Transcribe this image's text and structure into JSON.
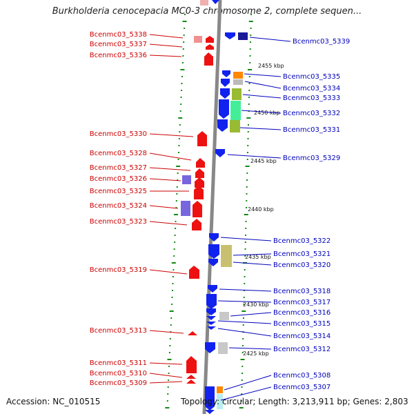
{
  "title": "Burkholderia cenocepacia MC0-3 chromosome 2, complete sequen...",
  "accession": "Accession: NC_010515",
  "topology": "Topology: circular; Length: 3,213,911 bp; Genes: 2,803",
  "scale_labels": [
    "2455 kbp",
    "2450 kbp",
    "2445 kbp",
    "2440 kbp",
    "2435 kbp",
    "2430 kbp",
    "2425 kbp"
  ],
  "left_genes": [
    "Bcenmc03_5338",
    "Bcenmc03_5337",
    "Bcenmc03_5336",
    "Bcenmc03_5330",
    "Bcenmc03_5328",
    "Bcenmc03_5327",
    "Bcenmc03_5326",
    "Bcenmc03_5325",
    "Bcenmc03_5324",
    "Bcenmc03_5323",
    "Bcenmc03_5319",
    "Bcenmc03_5313",
    "Bcenmc03_5311",
    "Bcenmc03_5310",
    "Bcenmc03_5309"
  ],
  "right_genes": [
    "Bcenmc03_5339",
    "Bcenmc03_5335",
    "Bcenmc03_5334",
    "Bcenmc03_5333",
    "Bcenmc03_5332",
    "Bcenmc03_5331",
    "Bcenmc03_5329",
    "Bcenmc03_5322",
    "Bcenmc03_5321",
    "Bcenmc03_5320",
    "Bcenmc03_5318",
    "Bcenmc03_5317",
    "Bcenmc03_5316",
    "Bcenmc03_5315",
    "Bcenmc03_5314",
    "Bcenmc03_5312",
    "Bcenmc03_5308",
    "Bcenmc03_5307"
  ],
  "colors": {
    "forward_gene": "#ee1111",
    "reverse_gene": "#1122ee",
    "left_label": "#cc0000",
    "right_label": "#0000bb",
    "tick": "#118811",
    "axis": "#888888"
  }
}
